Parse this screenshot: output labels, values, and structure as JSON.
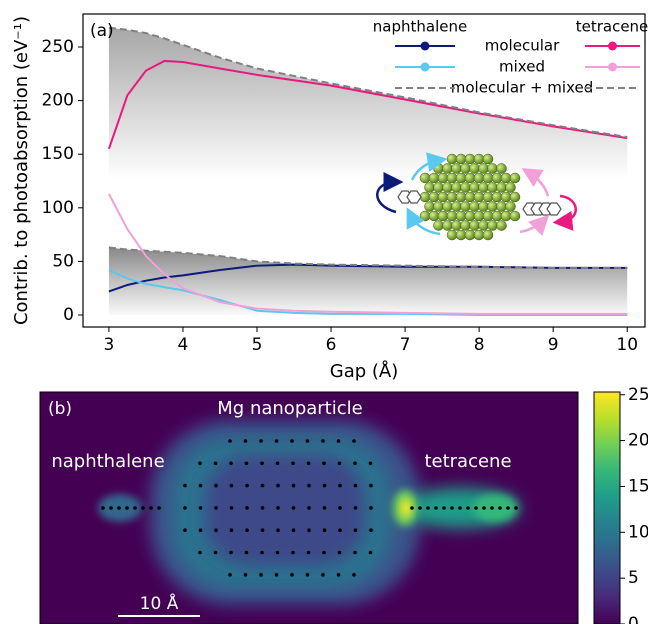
{
  "chart_data": [
    {
      "type": "line",
      "panel_label": "(a)",
      "xlabel": "Gap (Å)",
      "ylabel": "Contrib. to photoabsorption (eV⁻¹)",
      "xlim": [
        2.65,
        10.24
      ],
      "ylim": [
        -11.2,
        280.8
      ],
      "xticks": [
        3,
        4,
        5,
        6,
        7,
        8,
        9,
        10
      ],
      "yticks": [
        0,
        50,
        100,
        150,
        200,
        250
      ],
      "x": [
        3,
        3.25,
        3.5,
        3.75,
        4,
        4.5,
        5,
        5.5,
        6,
        7,
        8,
        9,
        10
      ],
      "legend_rows": [
        "molecular",
        "mixed",
        "molecular + mixed"
      ],
      "series": [
        {
          "name": "naphthalene",
          "molecular": {
            "color": "#0c1a7a",
            "linestyle": "solid",
            "values": [
              22,
              28,
              32,
              35,
              37,
              42,
              46,
              47,
              46,
              45,
              45,
              44,
              44
            ]
          },
          "mixed": {
            "color": "#5bc8ef",
            "linestyle": "solid",
            "values": [
              42,
              34,
              29,
              26,
              23,
              14,
              4,
              2,
              1,
              1,
              0,
              0,
              0
            ]
          },
          "total": {
            "color": "#808080",
            "linestyle": "dashed",
            "values": [
              63,
              61,
              60,
              59,
              58,
              55,
              50,
              48,
              47,
              46,
              45,
              44,
              44
            ]
          }
        },
        {
          "name": "tetracene",
          "molecular": {
            "color": "#e8197f",
            "linestyle": "solid",
            "values": [
              155,
              205,
              228,
              237,
              236,
              230,
              224,
              219,
              214,
              201,
              188,
              176,
              165
            ]
          },
          "mixed": {
            "color": "#f2a0d8",
            "linestyle": "solid",
            "values": [
              113,
              80,
              55,
              38,
              25,
              12,
              6,
              4,
              3,
              2,
              1,
              1,
              1
            ]
          },
          "total": {
            "color": "#808080",
            "linestyle": "dashed",
            "values": [
              268,
              266,
              263,
              258,
              252,
              240,
              230,
              223,
              216,
              203,
              189,
              177,
              166
            ]
          }
        }
      ]
    },
    {
      "type": "heatmap",
      "panel_label": "(b)",
      "annotations": [
        "Mg nanoparticle",
        "naphthalene",
        "tetracene"
      ],
      "scale_bar": "10 Å",
      "colorbar": {
        "clim": [
          0,
          25.3
        ],
        "ticks": [
          0,
          5,
          10,
          15,
          20,
          25
        ]
      }
    }
  ]
}
